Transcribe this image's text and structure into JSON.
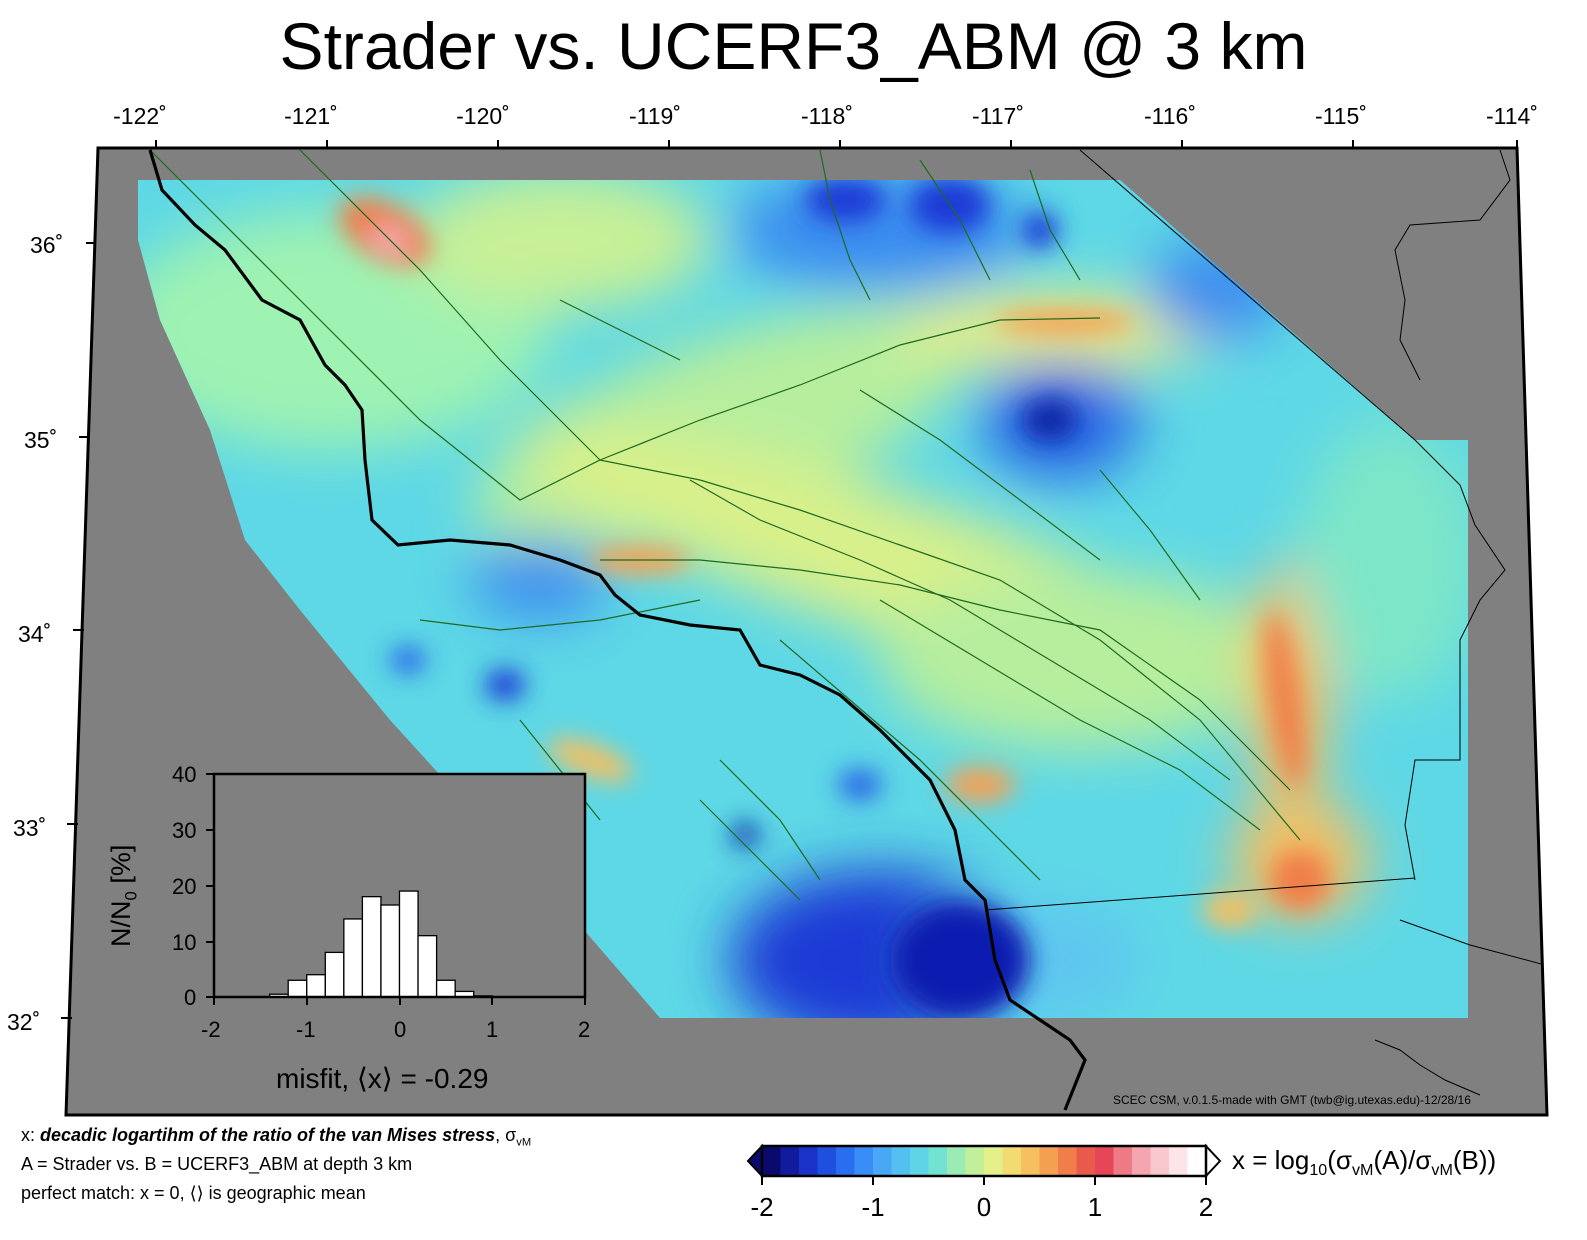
{
  "title": "Strader vs. UCERF3_ABM @ 3 km",
  "map": {
    "lon_ticks": [
      "-122˚",
      "-121˚",
      "-120˚",
      "-119˚",
      "-118˚",
      "-117˚",
      "-116˚",
      "-115˚",
      "-114˚"
    ],
    "lat_ticks": [
      "36˚",
      "35˚",
      "34˚",
      "33˚",
      "32˚"
    ],
    "credit": "SCEC CSM, v.0.1.5-made with GMT (twb@ig.utexas.edu)-12/28/16",
    "colors": {
      "background": "#808080",
      "coast": "#000000",
      "faults": "#1f6a1f"
    },
    "field_colormap": [
      "#0b0b8a",
      "#1a3ad6",
      "#2f7af0",
      "#46b4f4",
      "#5fe0e0",
      "#9ef2a6",
      "#e6f28c",
      "#f7c85c",
      "#f48a4a",
      "#e9444a",
      "#f0a8b0",
      "#ffffff"
    ]
  },
  "inset": {
    "y_label_main": "N/N",
    "y_label_sub": "0",
    "y_label_unit": " [%]",
    "y_ticks": [
      "40",
      "30",
      "20",
      "10",
      "0"
    ],
    "x_ticks": [
      "-2",
      "-1",
      "0",
      "1",
      "2"
    ],
    "x_label": "misfit, ⟨x⟩ = -0.29",
    "histogram": {
      "bin_edges": [
        -2.0,
        -1.8,
        -1.6,
        -1.4,
        -1.2,
        -1.0,
        -0.8,
        -0.6,
        -0.4,
        -0.2,
        0.0,
        0.2,
        0.4,
        0.6,
        0.8,
        1.0,
        1.2,
        1.4,
        1.6,
        1.8,
        2.0
      ],
      "percent": [
        0,
        0,
        0,
        0.5,
        3,
        4,
        8,
        14,
        18,
        16.5,
        19,
        11,
        3,
        1,
        0.2,
        0,
        0,
        0,
        0,
        0
      ]
    }
  },
  "notes": {
    "line1_prefix": "x: ",
    "line1_emph": "decadic logartihm of the ratio of the van Mises stress",
    "line1_suffix": ", σ",
    "line1_sub": "vM",
    "line2": "A = Strader vs.  B = UCERF3_ABM at depth 3 km",
    "line3": "perfect match: x = 0, ⟨⟩ is geographic mean"
  },
  "colorbar": {
    "ticks": [
      "-2",
      "-1",
      "0",
      "1",
      "2"
    ],
    "label": "x = log10(σvM(A)/σvM(B))",
    "colors": [
      "#0a0a6e",
      "#121a9e",
      "#1a32c8",
      "#1f4fe0",
      "#2a6ef0",
      "#3a8cf6",
      "#48a8f6",
      "#54c0f0",
      "#5ed4e6",
      "#72e2d2",
      "#9aecb4",
      "#c2f09a",
      "#e4f08a",
      "#f2dc72",
      "#f6c060",
      "#f4a052",
      "#f07e4a",
      "#ea5a4a",
      "#e64656",
      "#ee7a86",
      "#f4a6b0",
      "#f8c8ce",
      "#fce4e8",
      "#ffffff"
    ]
  }
}
